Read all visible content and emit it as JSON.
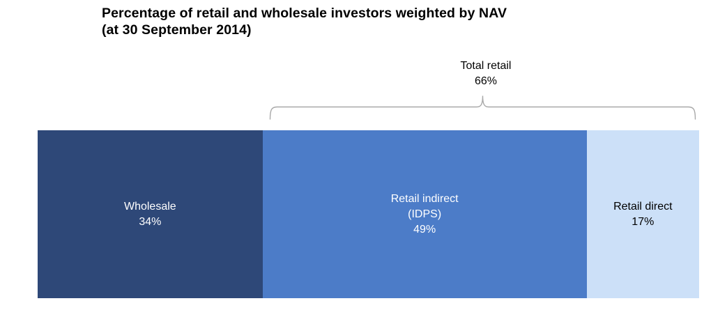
{
  "title": {
    "line1": "Percentage of retail and wholesale investors weighted by NAV",
    "line2": "(at 30 September 2014)"
  },
  "annotation": {
    "label": "Total retail",
    "value": "66%"
  },
  "segments": [
    {
      "name": "wholesale",
      "lines": [
        "Wholesale",
        "34%"
      ],
      "value": 34,
      "color": "#2E4878",
      "text_color": "#FFFFFF"
    },
    {
      "name": "retail-indirect",
      "lines": [
        "Retail indirect",
        "(IDPS)",
        "49%"
      ],
      "value": 49,
      "color": "#4C7CC8",
      "text_color": "#FFFFFF"
    },
    {
      "name": "retail-direct",
      "lines": [
        "Retail direct",
        "17%"
      ],
      "value": 17,
      "color": "#CCE0F8",
      "text_color": "#000000"
    }
  ],
  "chart_data": {
    "type": "bar",
    "subtype": "horizontal-stacked-100pct",
    "title": "Percentage of retail and wholesale investors weighted by NAV (at 30 September 2014)",
    "categories": [
      "Wholesale",
      "Retail indirect (IDPS)",
      "Retail direct"
    ],
    "values": [
      34,
      49,
      17
    ],
    "unit": "%",
    "annotations": [
      {
        "label": "Total retail",
        "value": 66,
        "unit": "%",
        "spans": [
          "Retail indirect (IDPS)",
          "Retail direct"
        ],
        "style": "curly-brace-above"
      }
    ],
    "colors": [
      "#2E4878",
      "#4C7CC8",
      "#CCE0F8"
    ],
    "label_colors": [
      "#FFFFFF",
      "#FFFFFF",
      "#000000"
    ],
    "brace_color": "#A8A8A8",
    "axes": "none",
    "grid": false,
    "legend": "none"
  }
}
